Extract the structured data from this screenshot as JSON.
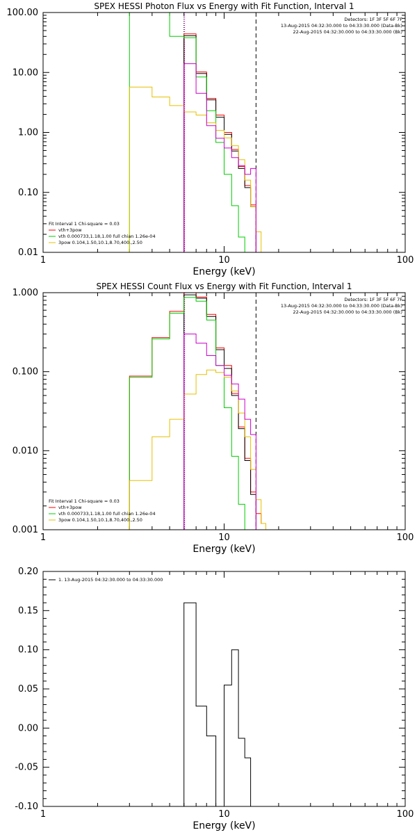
{
  "colors": {
    "black": "#000000",
    "red": "#ff0000",
    "green": "#00cc00",
    "magenta": "#cc00cc",
    "yellow": "#e6c000",
    "background": "#ffffff"
  },
  "panels": [
    {
      "key": "photon",
      "title": "SPEX HESSI Photon Flux vs Energy with Fit Function, Interval 1",
      "xlabel": "Energy (keV)",
      "ylabel": "",
      "xlog": true,
      "ylog": true,
      "xlim": [
        1,
        100
      ],
      "ylim": [
        0.01,
        100
      ],
      "xticks": [
        {
          "v": 1,
          "label": "1"
        },
        {
          "v": 10,
          "label": "10"
        },
        {
          "v": 100,
          "label": "100"
        }
      ],
      "yticks": [
        {
          "v": 0.01,
          "label": "0.01"
        },
        {
          "v": 0.1,
          "label": "0.10"
        },
        {
          "v": 1,
          "label": "1.00"
        },
        {
          "v": 10,
          "label": "10.00"
        },
        {
          "v": 100,
          "label": "100.00"
        }
      ],
      "info_lines": [
        "Detectors: 1F 3F 5F 6F 7F",
        "13-Aug-2015 04:32:30.000 to 04:33:30.000 (Data-Bk)",
        "22-Aug-2015 04:32:30.000 to 04:33:30.000 (Bk)"
      ],
      "legend": [
        {
          "text": "Fit Interval 1    Chi-square = 0.03",
          "color": "black",
          "line": false
        },
        {
          "text": "vth+3pow",
          "color": "red",
          "line": true
        },
        {
          "text": "vth 0.000733,1.18,1.00  full chian 1.26e-04",
          "color": "green",
          "line": true
        },
        {
          "text": "3pow 0.104,1.50,10.1,8.70,400.,2.50",
          "color": "yellow",
          "line": true
        }
      ],
      "vlines": [
        {
          "x": 6.0,
          "style": "dotted",
          "color": "black"
        },
        {
          "x": 6.05,
          "style": "dotted",
          "color": "magenta"
        },
        {
          "x": 15.0,
          "style": "dashed",
          "color": "black"
        }
      ]
    },
    {
      "key": "count",
      "title": "SPEX HESSI Count Flux vs Energy with Fit Function, Interval 1",
      "xlabel": "Energy (keV)",
      "ylabel": "",
      "xlog": true,
      "ylog": true,
      "xlim": [
        1,
        100
      ],
      "ylim": [
        0.001,
        1
      ],
      "xticks": [
        {
          "v": 1,
          "label": "1"
        },
        {
          "v": 10,
          "label": "10"
        },
        {
          "v": 100,
          "label": "100"
        }
      ],
      "yticks": [
        {
          "v": 0.001,
          "label": "0.001"
        },
        {
          "v": 0.01,
          "label": "0.010"
        },
        {
          "v": 0.1,
          "label": "0.100"
        },
        {
          "v": 1,
          "label": "1.000"
        }
      ],
      "info_lines": [
        "Detectors: 1F 3F 5F 6F 7F",
        "13-Aug-2015 04:32:30.000 to 04:33:30.000 (Data-Bk)",
        "22-Aug-2015 04:32:30.000 to 04:33:30.000 (Bk)"
      ],
      "legend": [
        {
          "text": "Fit Interval 1    Chi-square = 0.03",
          "color": "black",
          "line": false
        },
        {
          "text": "vth+3pow",
          "color": "red",
          "line": true
        },
        {
          "text": "vth 0.000733,1.18,1.00  full chian 1.26e-04",
          "color": "green",
          "line": true
        },
        {
          "text": "3pow 0.104,1.50,10.1,8.70,400.,2.50",
          "color": "yellow",
          "line": true
        }
      ],
      "vlines": [
        {
          "x": 6.0,
          "style": "dotted",
          "color": "black"
        },
        {
          "x": 6.05,
          "style": "dotted",
          "color": "magenta"
        },
        {
          "x": 15.0,
          "style": "dashed",
          "color": "black"
        }
      ]
    },
    {
      "key": "resid",
      "title": "",
      "xlabel": "Energy (keV)",
      "ylabel": "",
      "xlog": true,
      "ylog": false,
      "xlim": [
        1,
        100
      ],
      "ylim": [
        -0.1,
        0.2
      ],
      "xticks": [
        {
          "v": 1,
          "label": "1"
        },
        {
          "v": 10,
          "label": "10"
        },
        {
          "v": 100,
          "label": "100"
        }
      ],
      "yticks": [
        {
          "v": -0.1,
          "label": "-0.10"
        },
        {
          "v": -0.05,
          "label": "-0.05"
        },
        {
          "v": 0,
          "label": "0.00"
        },
        {
          "v": 0.05,
          "label": "0.05"
        },
        {
          "v": 0.1,
          "label": "0.10"
        },
        {
          "v": 0.15,
          "label": "0.15"
        },
        {
          "v": 0.2,
          "label": "0.20"
        }
      ],
      "info_lines": [],
      "legend": [
        {
          "text": "1. 13-Aug-2015 04:32:30.000 to 04:33:30.000",
          "color": "black",
          "line": true
        }
      ],
      "vlines": []
    }
  ],
  "chart_data": [
    {
      "type": "line",
      "subtype": "histogram-step",
      "title": "SPEX HESSI Photon Flux vs Energy with Fit Function, Interval 1",
      "xlabel": "Energy (keV)",
      "xscale": "log",
      "yscale": "log",
      "xlim": [
        1,
        100
      ],
      "ylim": [
        0.01,
        100
      ],
      "series": [
        {
          "name": "vth+3pow",
          "color": "red",
          "bin_edges": [
            6,
            7,
            8,
            9,
            10,
            11,
            12,
            13,
            14,
            15
          ],
          "values": [
            44,
            10.2,
            3.7,
            1.95,
            1.0,
            0.52,
            0.27,
            0.13,
            0.062
          ]
        },
        {
          "name": "Data-Bk",
          "color": "black",
          "bin_edges": [
            6,
            7,
            8,
            9,
            10,
            11,
            12,
            13,
            14,
            15
          ],
          "values": [
            41,
            9.6,
            3.5,
            1.8,
            0.93,
            0.49,
            0.25,
            0.12,
            0.058
          ]
        },
        {
          "name": "vth",
          "color": "green",
          "bin_edges": [
            3,
            5,
            6,
            7,
            8,
            9,
            10,
            11,
            12,
            13,
            14
          ],
          "values": [
            200,
            40,
            38,
            8.4,
            2.3,
            0.68,
            0.2,
            0.06,
            0.018,
            0.005
          ]
        },
        {
          "name": "3pow",
          "color": "yellow",
          "bin_edges": [
            3,
            4,
            5,
            6,
            7,
            8,
            9,
            10,
            11,
            12,
            13,
            14,
            15,
            16
          ],
          "values": [
            5.7,
            3.9,
            2.8,
            2.2,
            1.95,
            1.45,
            1.08,
            0.81,
            0.6,
            0.35,
            0.16,
            0.058,
            0.022
          ]
        },
        {
          "name": "Bk",
          "color": "magenta",
          "bin_edges": [
            6,
            7,
            8,
            9,
            10,
            11,
            12,
            13,
            14,
            15
          ],
          "values": [
            14,
            4.5,
            1.3,
            0.8,
            0.55,
            0.38,
            0.28,
            0.2,
            0.25
          ]
        }
      ]
    },
    {
      "type": "line",
      "subtype": "histogram-step",
      "title": "SPEX HESSI Count Flux vs Energy with Fit Function, Interval 1",
      "xlabel": "Energy (keV)",
      "xscale": "log",
      "yscale": "log",
      "xlim": [
        1,
        100
      ],
      "ylim": [
        0.001,
        1
      ],
      "series": [
        {
          "name": "vth+3pow",
          "color": "red",
          "bin_edges": [
            3,
            4,
            5,
            6,
            7,
            8,
            9,
            10,
            11,
            12,
            13,
            14,
            15,
            16,
            17,
            18
          ],
          "values": [
            0.088,
            0.27,
            0.58,
            1.0,
            0.88,
            0.53,
            0.2,
            0.12,
            0.053,
            0.02,
            0.008,
            0.003,
            0.0016,
            0.0012,
            0.001
          ]
        },
        {
          "name": "Data-Bk",
          "color": "black",
          "bin_edges": [
            6,
            7,
            8,
            9,
            10,
            11,
            12,
            13,
            14,
            15
          ],
          "values": [
            0.94,
            0.85,
            0.5,
            0.19,
            0.11,
            0.05,
            0.019,
            0.0075,
            0.0028
          ]
        },
        {
          "name": "vth",
          "color": "green",
          "bin_edges": [
            3,
            4,
            5,
            6,
            7,
            8,
            9,
            10,
            11,
            12,
            13,
            14
          ],
          "values": [
            0.085,
            0.26,
            0.55,
            0.87,
            0.78,
            0.45,
            0.12,
            0.035,
            0.0085,
            0.0021,
            0.001
          ]
        },
        {
          "name": "3pow",
          "color": "yellow",
          "bin_edges": [
            3,
            4,
            5,
            6,
            7,
            8,
            9,
            10,
            11,
            12,
            13,
            14,
            15,
            16,
            17,
            18
          ],
          "values": [
            0.0042,
            0.015,
            0.025,
            0.052,
            0.092,
            0.105,
            0.098,
            0.085,
            0.057,
            0.03,
            0.015,
            0.0058,
            0.0024,
            0.0012,
            0.001
          ]
        },
        {
          "name": "Bk",
          "color": "magenta",
          "bin_edges": [
            6,
            7,
            8,
            9,
            10,
            11,
            12,
            13,
            14,
            15
          ],
          "values": [
            0.3,
            0.23,
            0.16,
            0.12,
            0.09,
            0.07,
            0.045,
            0.025,
            0.016
          ]
        }
      ]
    },
    {
      "type": "line",
      "subtype": "histogram-step",
      "title": "",
      "xlabel": "Energy (keV)",
      "xscale": "log",
      "yscale": "linear",
      "xlim": [
        1,
        100
      ],
      "ylim": [
        -0.1,
        0.2
      ],
      "series": [
        {
          "name": "1. 13-Aug-2015 04:32:30.000 to 04:33:30.000",
          "color": "black",
          "bin_edges": [
            6,
            7,
            8,
            9,
            10,
            11,
            12,
            13,
            14,
            15
          ],
          "values": [
            0.16,
            0.028,
            -0.01,
            -0.1,
            0.055,
            0.1,
            -0.013,
            -0.038,
            -0.1
          ]
        }
      ]
    }
  ]
}
